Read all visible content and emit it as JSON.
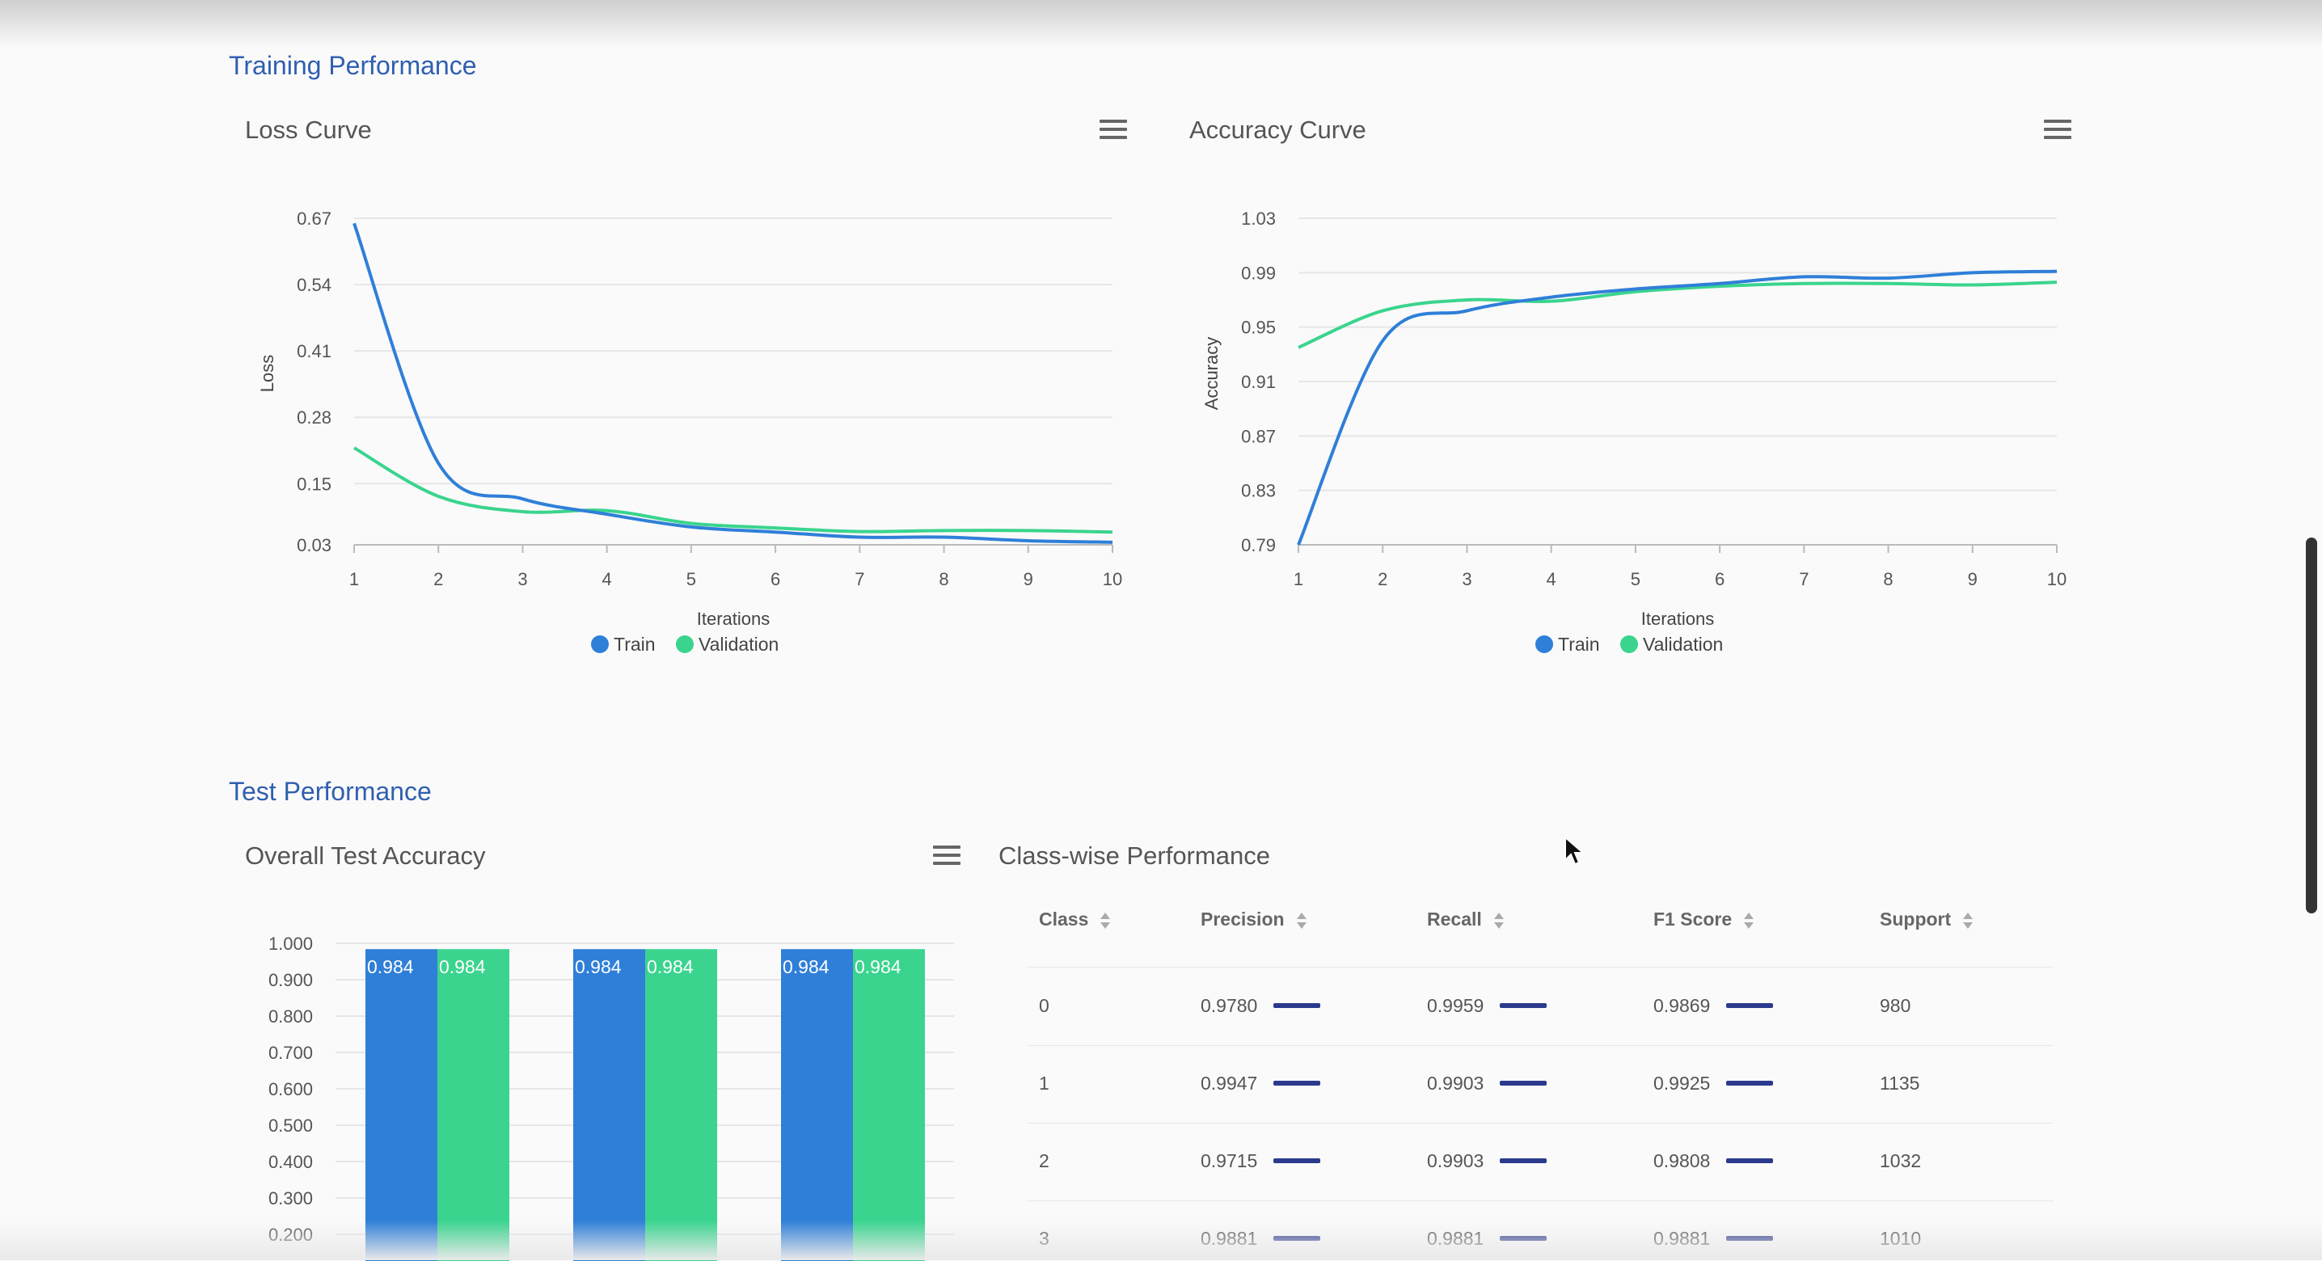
{
  "sections": {
    "training": "Training Performance",
    "test": "Test Performance"
  },
  "cards": {
    "loss": {
      "title": "Loss Curve"
    },
    "accuracy": {
      "title": "Accuracy Curve"
    },
    "overall": {
      "title": "Overall Test Accuracy"
    },
    "classwise": {
      "title": "Class-wise Performance"
    }
  },
  "legend": {
    "train": "Train",
    "validation": "Validation"
  },
  "colors": {
    "train": "#2f7fd8",
    "validation": "#3ad48e",
    "section": "#2f5fb0",
    "mini_bar": "#2b3a8c"
  },
  "chart_data": [
    {
      "type": "line",
      "title": "Loss Curve",
      "xlabel": "Iterations",
      "ylabel": "Loss",
      "x": [
        1,
        2,
        3,
        4,
        5,
        6,
        7,
        8,
        9,
        10
      ],
      "y_ticks": [
        "0.67",
        "0.54",
        "0.41",
        "0.28",
        "0.15",
        "0.03"
      ],
      "ylim": [
        0.03,
        0.67
      ],
      "series": [
        {
          "name": "Train",
          "values": [
            0.66,
            0.19,
            0.12,
            0.09,
            0.065,
            0.055,
            0.045,
            0.045,
            0.038,
            0.035
          ]
        },
        {
          "name": "Validation",
          "values": [
            0.22,
            0.125,
            0.095,
            0.097,
            0.072,
            0.063,
            0.056,
            0.058,
            0.058,
            0.055
          ]
        }
      ],
      "legend": "bottom",
      "grid": true
    },
    {
      "type": "line",
      "title": "Accuracy Curve",
      "xlabel": "Iterations",
      "ylabel": "Accuracy",
      "x": [
        1,
        2,
        3,
        4,
        5,
        6,
        7,
        8,
        9,
        10
      ],
      "y_ticks": [
        "1.03",
        "0.99",
        "0.95",
        "0.91",
        "0.87",
        "0.83",
        "0.79"
      ],
      "ylim": [
        0.79,
        1.03
      ],
      "series": [
        {
          "name": "Train",
          "values": [
            0.79,
            0.94,
            0.962,
            0.972,
            0.978,
            0.982,
            0.987,
            0.986,
            0.99,
            0.991
          ]
        },
        {
          "name": "Validation",
          "values": [
            0.935,
            0.962,
            0.97,
            0.969,
            0.976,
            0.98,
            0.982,
            0.982,
            0.981,
            0.983
          ]
        }
      ],
      "legend": "bottom",
      "grid": true
    },
    {
      "type": "bar",
      "title": "Overall Test Accuracy",
      "y_ticks": [
        "1.000",
        "0.900",
        "0.800",
        "0.700",
        "0.600",
        "0.500",
        "0.400",
        "0.300",
        "0.200"
      ],
      "ylim": [
        0.2,
        1.0
      ],
      "groups": [
        {
          "train": 0.984,
          "validation": 0.984,
          "train_label": "0.984",
          "validation_label": "0.984"
        },
        {
          "train": 0.984,
          "validation": 0.984,
          "train_label": "0.984",
          "validation_label": "0.984"
        },
        {
          "train": 0.984,
          "validation": 0.984,
          "train_label": "0.984",
          "validation_label": "0.984"
        }
      ]
    }
  ],
  "table": {
    "headers": [
      "Class",
      "Precision",
      "Recall",
      "F1 Score",
      "Support"
    ],
    "rows": [
      {
        "class": "0",
        "precision": "0.9780",
        "recall": "0.9959",
        "f1": "0.9869",
        "support": "980"
      },
      {
        "class": "1",
        "precision": "0.9947",
        "recall": "0.9903",
        "f1": "0.9925",
        "support": "1135"
      },
      {
        "class": "2",
        "precision": "0.9715",
        "recall": "0.9903",
        "f1": "0.9808",
        "support": "1032"
      },
      {
        "class": "3",
        "precision": "0.9881",
        "recall": "0.9881",
        "f1": "0.9881",
        "support": "1010"
      }
    ]
  }
}
